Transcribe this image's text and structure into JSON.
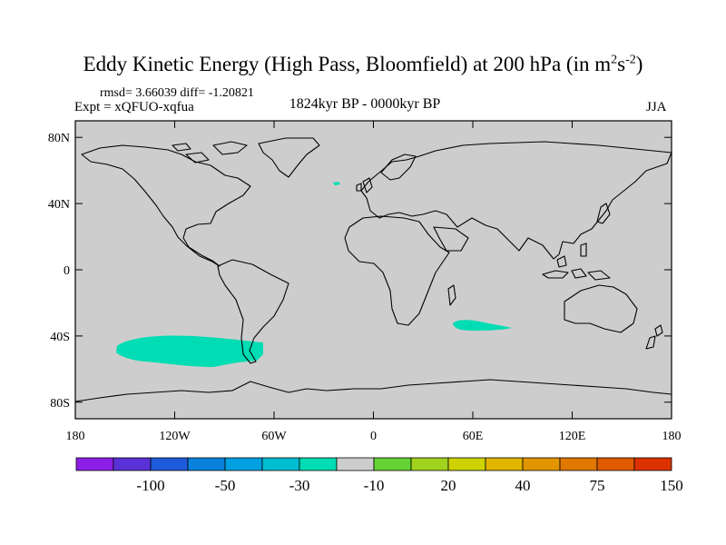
{
  "header": {
    "title_text": "Eddy Kinetic Energy (High Pass, Bloomfield) at 200 hPa (in m",
    "title_sup1": "2",
    "title_mid": "s",
    "title_sup2": "-2",
    "title_end": ")",
    "stats": "rmsd= 3.66039 diff= -1.20821",
    "expt": "Expt = xQFUO-xqfua",
    "period": "1824kyr BP - 0000kyr BP",
    "season": "JJA"
  },
  "map": {
    "lon_range": [
      -180,
      180
    ],
    "lat_range": [
      -90,
      90
    ],
    "lat_ticks": [
      {
        "value": 80,
        "label": "80N"
      },
      {
        "value": 40,
        "label": "40N"
      },
      {
        "value": 0,
        "label": "0"
      },
      {
        "value": -40,
        "label": "40S"
      },
      {
        "value": -80,
        "label": "80S"
      }
    ],
    "lon_ticks": [
      {
        "value": -180,
        "label": "180"
      },
      {
        "value": -120,
        "label": "120W"
      },
      {
        "value": -60,
        "label": "60W"
      },
      {
        "value": 0,
        "label": "0"
      },
      {
        "value": 60,
        "label": "60E"
      },
      {
        "value": 120,
        "label": "120E"
      },
      {
        "value": 180,
        "label": "180"
      }
    ],
    "background_color": "#cdcdcd",
    "anomaly_color": "#00dcb4"
  },
  "colorbar": {
    "colors": [
      "#8c1ee6",
      "#5a32d7",
      "#1e5adc",
      "#0a82dc",
      "#00a0e1",
      "#00bed2",
      "#00dcb4",
      "#cdcdcd",
      "#64d232",
      "#a0d21e",
      "#cdd200",
      "#e1b400",
      "#e19600",
      "#e17800",
      "#e15a00",
      "#dc3200"
    ],
    "labels": [
      "-100",
      "-50",
      "-30",
      "-10",
      "20",
      "40",
      "75",
      "150"
    ]
  }
}
